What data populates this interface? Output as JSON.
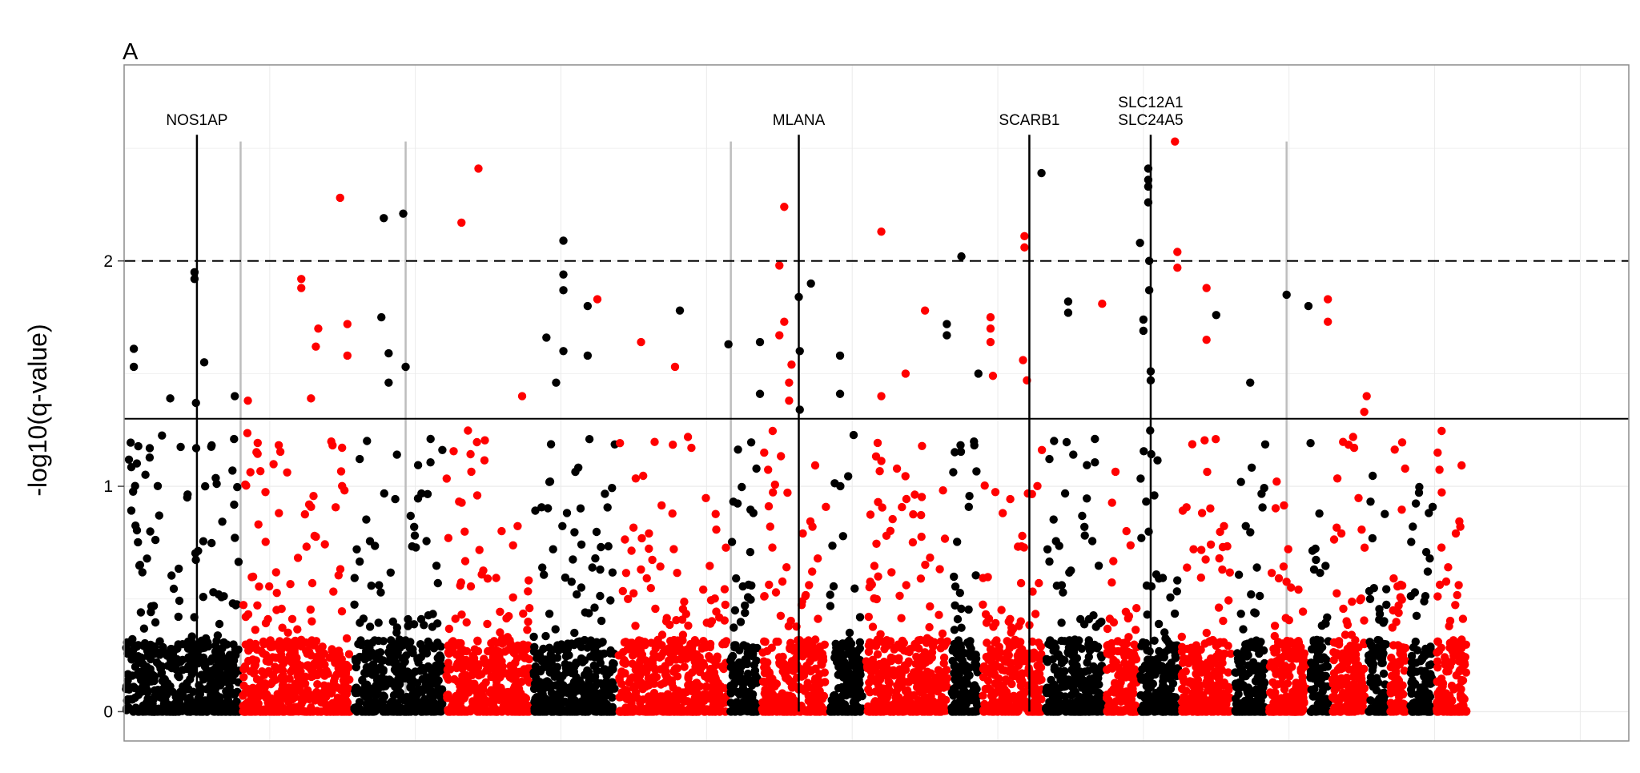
{
  "chart_data": {
    "type": "scatter",
    "panel_label": "A",
    "xlabel": "",
    "ylabel": "-log10(q-value)",
    "ylim": [
      -0.13,
      2.87
    ],
    "y_ticks": [
      0,
      1,
      2
    ],
    "y_tick_labels": [
      "0",
      "1",
      "2"
    ],
    "grid": true,
    "x_axis_ticks_shown": false,
    "xlim": [
      0,
      3100
    ],
    "colors": {
      "series_a": "#000000",
      "series_b": "#ff0000",
      "guide_line": "#bdbdbd",
      "panel_border": "#8c8c8c",
      "grid": "#ebebeb"
    },
    "reference_lines": [
      {
        "y": 2.0,
        "style": "dashed"
      },
      {
        "y": 1.3,
        "style": "solid"
      }
    ],
    "gene_annotations": [
      {
        "labels": [
          "NOS1AP"
        ],
        "x": 150
      },
      {
        "labels": [
          "MLANA"
        ],
        "x": 1390
      },
      {
        "labels": [
          "SCARB1"
        ],
        "x": 1865
      },
      {
        "labels": [
          "SLC12A1",
          "SLC24A5"
        ],
        "x": 2115
      }
    ],
    "grey_vertical_lines_x": [
      240,
      580,
      1250,
      2395
    ],
    "segments": [
      {
        "start": 0,
        "end": 125,
        "color": "black"
      },
      {
        "start": 125,
        "end": 240,
        "color": "black"
      },
      {
        "start": 240,
        "end": 470,
        "color": "red"
      },
      {
        "start": 470,
        "end": 660,
        "color": "black"
      },
      {
        "start": 660,
        "end": 840,
        "color": "red"
      },
      {
        "start": 840,
        "end": 1015,
        "color": "black"
      },
      {
        "start": 1015,
        "end": 1245,
        "color": "red"
      },
      {
        "start": 1245,
        "end": 1310,
        "color": "black"
      },
      {
        "start": 1310,
        "end": 1450,
        "color": "red"
      },
      {
        "start": 1450,
        "end": 1525,
        "color": "black"
      },
      {
        "start": 1525,
        "end": 1700,
        "color": "red"
      },
      {
        "start": 1700,
        "end": 1765,
        "color": "black"
      },
      {
        "start": 1765,
        "end": 1895,
        "color": "red"
      },
      {
        "start": 1895,
        "end": 2020,
        "color": "black"
      },
      {
        "start": 2020,
        "end": 2090,
        "color": "red"
      },
      {
        "start": 2090,
        "end": 2175,
        "color": "black"
      },
      {
        "start": 2175,
        "end": 2285,
        "color": "red"
      },
      {
        "start": 2285,
        "end": 2355,
        "color": "black"
      },
      {
        "start": 2355,
        "end": 2440,
        "color": "red"
      },
      {
        "start": 2440,
        "end": 2485,
        "color": "black"
      },
      {
        "start": 2485,
        "end": 2560,
        "color": "red"
      },
      {
        "start": 2560,
        "end": 2605,
        "color": "black"
      },
      {
        "start": 2605,
        "end": 2645,
        "color": "red"
      },
      {
        "start": 2645,
        "end": 2700,
        "color": "black"
      },
      {
        "start": 2700,
        "end": 2770,
        "color": "red"
      }
    ],
    "notable_points": [
      {
        "x": 20,
        "y": 1.61,
        "color": "black"
      },
      {
        "x": 20,
        "y": 1.53,
        "color": "black"
      },
      {
        "x": 95,
        "y": 1.39,
        "color": "black"
      },
      {
        "x": 145,
        "y": 1.95,
        "color": "black"
      },
      {
        "x": 145,
        "y": 1.92,
        "color": "black"
      },
      {
        "x": 148,
        "y": 1.37,
        "color": "black"
      },
      {
        "x": 165,
        "y": 1.55,
        "color": "black"
      },
      {
        "x": 228,
        "y": 1.4,
        "color": "black"
      },
      {
        "x": 255,
        "y": 1.38,
        "color": "red"
      },
      {
        "x": 365,
        "y": 1.92,
        "color": "red"
      },
      {
        "x": 365,
        "y": 1.88,
        "color": "red"
      },
      {
        "x": 385,
        "y": 1.39,
        "color": "red"
      },
      {
        "x": 400,
        "y": 1.7,
        "color": "red"
      },
      {
        "x": 395,
        "y": 1.62,
        "color": "red"
      },
      {
        "x": 445,
        "y": 2.28,
        "color": "red"
      },
      {
        "x": 460,
        "y": 1.72,
        "color": "red"
      },
      {
        "x": 460,
        "y": 1.58,
        "color": "red"
      },
      {
        "x": 535,
        "y": 2.19,
        "color": "black"
      },
      {
        "x": 530,
        "y": 1.75,
        "color": "black"
      },
      {
        "x": 545,
        "y": 1.59,
        "color": "black"
      },
      {
        "x": 545,
        "y": 1.46,
        "color": "black"
      },
      {
        "x": 575,
        "y": 2.21,
        "color": "black"
      },
      {
        "x": 580,
        "y": 1.53,
        "color": "black"
      },
      {
        "x": 695,
        "y": 2.17,
        "color": "red"
      },
      {
        "x": 730,
        "y": 2.41,
        "color": "red"
      },
      {
        "x": 820,
        "y": 1.4,
        "color": "red"
      },
      {
        "x": 870,
        "y": 1.66,
        "color": "black"
      },
      {
        "x": 890,
        "y": 1.46,
        "color": "black"
      },
      {
        "x": 905,
        "y": 2.09,
        "color": "black"
      },
      {
        "x": 905,
        "y": 1.94,
        "color": "black"
      },
      {
        "x": 905,
        "y": 1.87,
        "color": "black"
      },
      {
        "x": 905,
        "y": 1.6,
        "color": "black"
      },
      {
        "x": 955,
        "y": 1.58,
        "color": "black"
      },
      {
        "x": 955,
        "y": 1.8,
        "color": "black"
      },
      {
        "x": 975,
        "y": 1.83,
        "color": "red"
      },
      {
        "x": 1065,
        "y": 1.64,
        "color": "red"
      },
      {
        "x": 1135,
        "y": 1.53,
        "color": "red"
      },
      {
        "x": 1145,
        "y": 1.78,
        "color": "black"
      },
      {
        "x": 1245,
        "y": 1.63,
        "color": "black"
      },
      {
        "x": 1310,
        "y": 1.64,
        "color": "black"
      },
      {
        "x": 1310,
        "y": 1.41,
        "color": "black"
      },
      {
        "x": 1350,
        "y": 1.98,
        "color": "red"
      },
      {
        "x": 1360,
        "y": 2.24,
        "color": "red"
      },
      {
        "x": 1360,
        "y": 1.73,
        "color": "red"
      },
      {
        "x": 1350,
        "y": 1.67,
        "color": "red"
      },
      {
        "x": 1375,
        "y": 1.54,
        "color": "red"
      },
      {
        "x": 1370,
        "y": 1.46,
        "color": "red"
      },
      {
        "x": 1370,
        "y": 1.38,
        "color": "red"
      },
      {
        "x": 1390,
        "y": 1.84,
        "color": "black"
      },
      {
        "x": 1392,
        "y": 1.6,
        "color": "black"
      },
      {
        "x": 1392,
        "y": 1.34,
        "color": "black"
      },
      {
        "x": 1415,
        "y": 1.9,
        "color": "black"
      },
      {
        "x": 1475,
        "y": 1.58,
        "color": "black"
      },
      {
        "x": 1475,
        "y": 1.41,
        "color": "black"
      },
      {
        "x": 1560,
        "y": 2.13,
        "color": "red"
      },
      {
        "x": 1560,
        "y": 1.4,
        "color": "red"
      },
      {
        "x": 1610,
        "y": 1.5,
        "color": "red"
      },
      {
        "x": 1650,
        "y": 1.78,
        "color": "red"
      },
      {
        "x": 1695,
        "y": 1.72,
        "color": "black"
      },
      {
        "x": 1695,
        "y": 1.67,
        "color": "black"
      },
      {
        "x": 1725,
        "y": 2.02,
        "color": "black"
      },
      {
        "x": 1760,
        "y": 1.5,
        "color": "black"
      },
      {
        "x": 1785,
        "y": 1.75,
        "color": "red"
      },
      {
        "x": 1785,
        "y": 1.7,
        "color": "red"
      },
      {
        "x": 1785,
        "y": 1.64,
        "color": "red"
      },
      {
        "x": 1790,
        "y": 1.49,
        "color": "red"
      },
      {
        "x": 1855,
        "y": 2.11,
        "color": "red"
      },
      {
        "x": 1855,
        "y": 2.06,
        "color": "red"
      },
      {
        "x": 1852,
        "y": 1.56,
        "color": "red"
      },
      {
        "x": 1860,
        "y": 1.47,
        "color": "red"
      },
      {
        "x": 1890,
        "y": 2.39,
        "color": "black"
      },
      {
        "x": 1945,
        "y": 1.82,
        "color": "black"
      },
      {
        "x": 1945,
        "y": 1.77,
        "color": "black"
      },
      {
        "x": 2015,
        "y": 1.81,
        "color": "red"
      },
      {
        "x": 2093,
        "y": 2.08,
        "color": "black"
      },
      {
        "x": 2110,
        "y": 2.41,
        "color": "black"
      },
      {
        "x": 2110,
        "y": 2.36,
        "color": "black"
      },
      {
        "x": 2110,
        "y": 2.33,
        "color": "black"
      },
      {
        "x": 2110,
        "y": 2.26,
        "color": "black"
      },
      {
        "x": 2112,
        "y": 2.0,
        "color": "black"
      },
      {
        "x": 2112,
        "y": 1.87,
        "color": "black"
      },
      {
        "x": 2100,
        "y": 1.74,
        "color": "black"
      },
      {
        "x": 2100,
        "y": 1.69,
        "color": "black"
      },
      {
        "x": 2115,
        "y": 1.51,
        "color": "black"
      },
      {
        "x": 2115,
        "y": 1.47,
        "color": "black"
      },
      {
        "x": 2165,
        "y": 2.53,
        "color": "red"
      },
      {
        "x": 2170,
        "y": 2.04,
        "color": "red"
      },
      {
        "x": 2170,
        "y": 1.97,
        "color": "red"
      },
      {
        "x": 2230,
        "y": 1.88,
        "color": "red"
      },
      {
        "x": 2230,
        "y": 1.65,
        "color": "red"
      },
      {
        "x": 2250,
        "y": 1.76,
        "color": "black"
      },
      {
        "x": 2320,
        "y": 1.46,
        "color": "black"
      },
      {
        "x": 2395,
        "y": 1.85,
        "color": "black"
      },
      {
        "x": 2440,
        "y": 1.8,
        "color": "black"
      },
      {
        "x": 2480,
        "y": 1.83,
        "color": "red"
      },
      {
        "x": 2480,
        "y": 1.73,
        "color": "red"
      },
      {
        "x": 2560,
        "y": 1.4,
        "color": "red"
      },
      {
        "x": 2555,
        "y": 1.33,
        "color": "red"
      }
    ]
  }
}
